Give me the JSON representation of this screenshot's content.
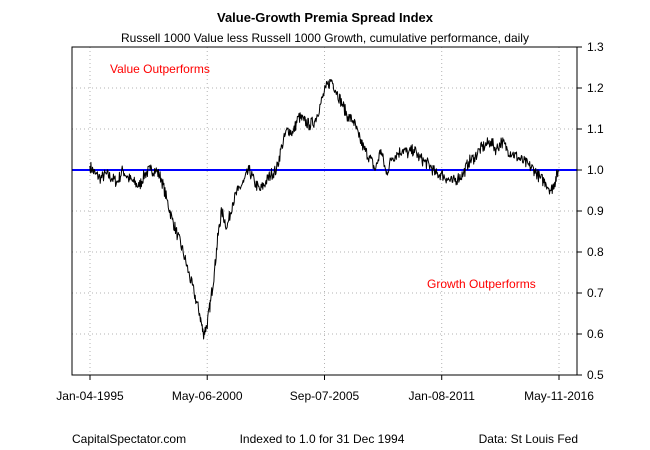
{
  "chart_data": {
    "type": "line",
    "title": "Value-Growth Premia Spread Index",
    "subtitle": "Russell 1000 Value less Russell 1000 Growth, cumulative performance, daily",
    "xlabel": "",
    "ylabel": "",
    "ylim": [
      0.5,
      1.3
    ],
    "y_ticks": [
      "0.5",
      "0.6",
      "0.7",
      "0.8",
      "0.9",
      "1.0",
      "1.1",
      "1.2",
      "1.3"
    ],
    "x_ticks": [
      "Jan-04-1995",
      "May-06-2000",
      "Sep-07-2005",
      "Jan-08-2011",
      "May-11-2016"
    ],
    "y_axis_side": "right",
    "grid": true,
    "reference_line": {
      "y": 1.0,
      "color": "#0000ff"
    },
    "annotations": [
      {
        "text": "Value Outperforms",
        "color": "#ff0000"
      },
      {
        "text": "Growth Outperforms",
        "color": "#ff0000"
      }
    ],
    "series": [
      {
        "color": "#000000",
        "x": [
          "1995-01",
          "1995-04",
          "1995-07",
          "1995-10",
          "1996-01",
          "1996-04",
          "1996-07",
          "1996-10",
          "1997-01",
          "1997-04",
          "1997-07",
          "1997-10",
          "1998-01",
          "1998-04",
          "1998-07",
          "1998-10",
          "1999-01",
          "1999-04",
          "1999-07",
          "1999-10",
          "2000-01",
          "2000-03",
          "2000-05",
          "2000-07",
          "2000-09",
          "2000-11",
          "2001-01",
          "2001-04",
          "2001-07",
          "2001-10",
          "2002-01",
          "2002-04",
          "2002-07",
          "2002-10",
          "2003-01",
          "2003-04",
          "2003-07",
          "2003-10",
          "2004-01",
          "2004-04",
          "2004-07",
          "2004-10",
          "2005-01",
          "2005-04",
          "2005-07",
          "2005-10",
          "2006-01",
          "2006-04",
          "2006-07",
          "2006-10",
          "2007-01",
          "2007-04",
          "2007-07",
          "2007-10",
          "2008-01",
          "2008-04",
          "2008-07",
          "2008-10",
          "2009-01",
          "2009-04",
          "2009-07",
          "2009-10",
          "2010-01",
          "2010-04",
          "2010-07",
          "2010-10",
          "2011-01",
          "2011-04",
          "2011-07",
          "2011-10",
          "2012-01",
          "2012-04",
          "2012-07",
          "2012-10",
          "2013-01",
          "2013-04",
          "2013-07",
          "2013-10",
          "2014-01",
          "2014-04",
          "2014-07",
          "2014-10",
          "2015-01",
          "2015-04",
          "2015-07",
          "2015-10",
          "2016-01",
          "2016-03",
          "2016-05"
        ],
        "values": [
          1.01,
          0.99,
          0.98,
          0.99,
          0.98,
          0.97,
          1.0,
          0.98,
          0.97,
          0.96,
          0.99,
          1.0,
          1.0,
          0.98,
          0.93,
          0.88,
          0.84,
          0.8,
          0.75,
          0.7,
          0.65,
          0.6,
          0.62,
          0.68,
          0.75,
          0.84,
          0.9,
          0.86,
          0.92,
          0.95,
          0.97,
          1.0,
          0.97,
          0.95,
          0.97,
          0.99,
          1.0,
          1.06,
          1.1,
          1.09,
          1.13,
          1.12,
          1.11,
          1.12,
          1.16,
          1.2,
          1.22,
          1.19,
          1.16,
          1.13,
          1.12,
          1.08,
          1.05,
          1.03,
          1.0,
          1.05,
          0.99,
          1.03,
          1.04,
          1.05,
          1.04,
          1.05,
          1.03,
          1.02,
          1.01,
          0.99,
          0.99,
          0.98,
          0.97,
          0.98,
          0.99,
          1.02,
          1.03,
          1.05,
          1.06,
          1.07,
          1.05,
          1.07,
          1.05,
          1.04,
          1.03,
          1.02,
          1.01,
          1.0,
          0.98,
          0.97,
          0.95,
          0.97,
          1.0
        ]
      }
    ]
  },
  "footer": {
    "left": "CapitalSpectator.com",
    "center": "Indexed to 1.0 for 31 Dec 1994",
    "right": "Data: St Louis Fed"
  }
}
